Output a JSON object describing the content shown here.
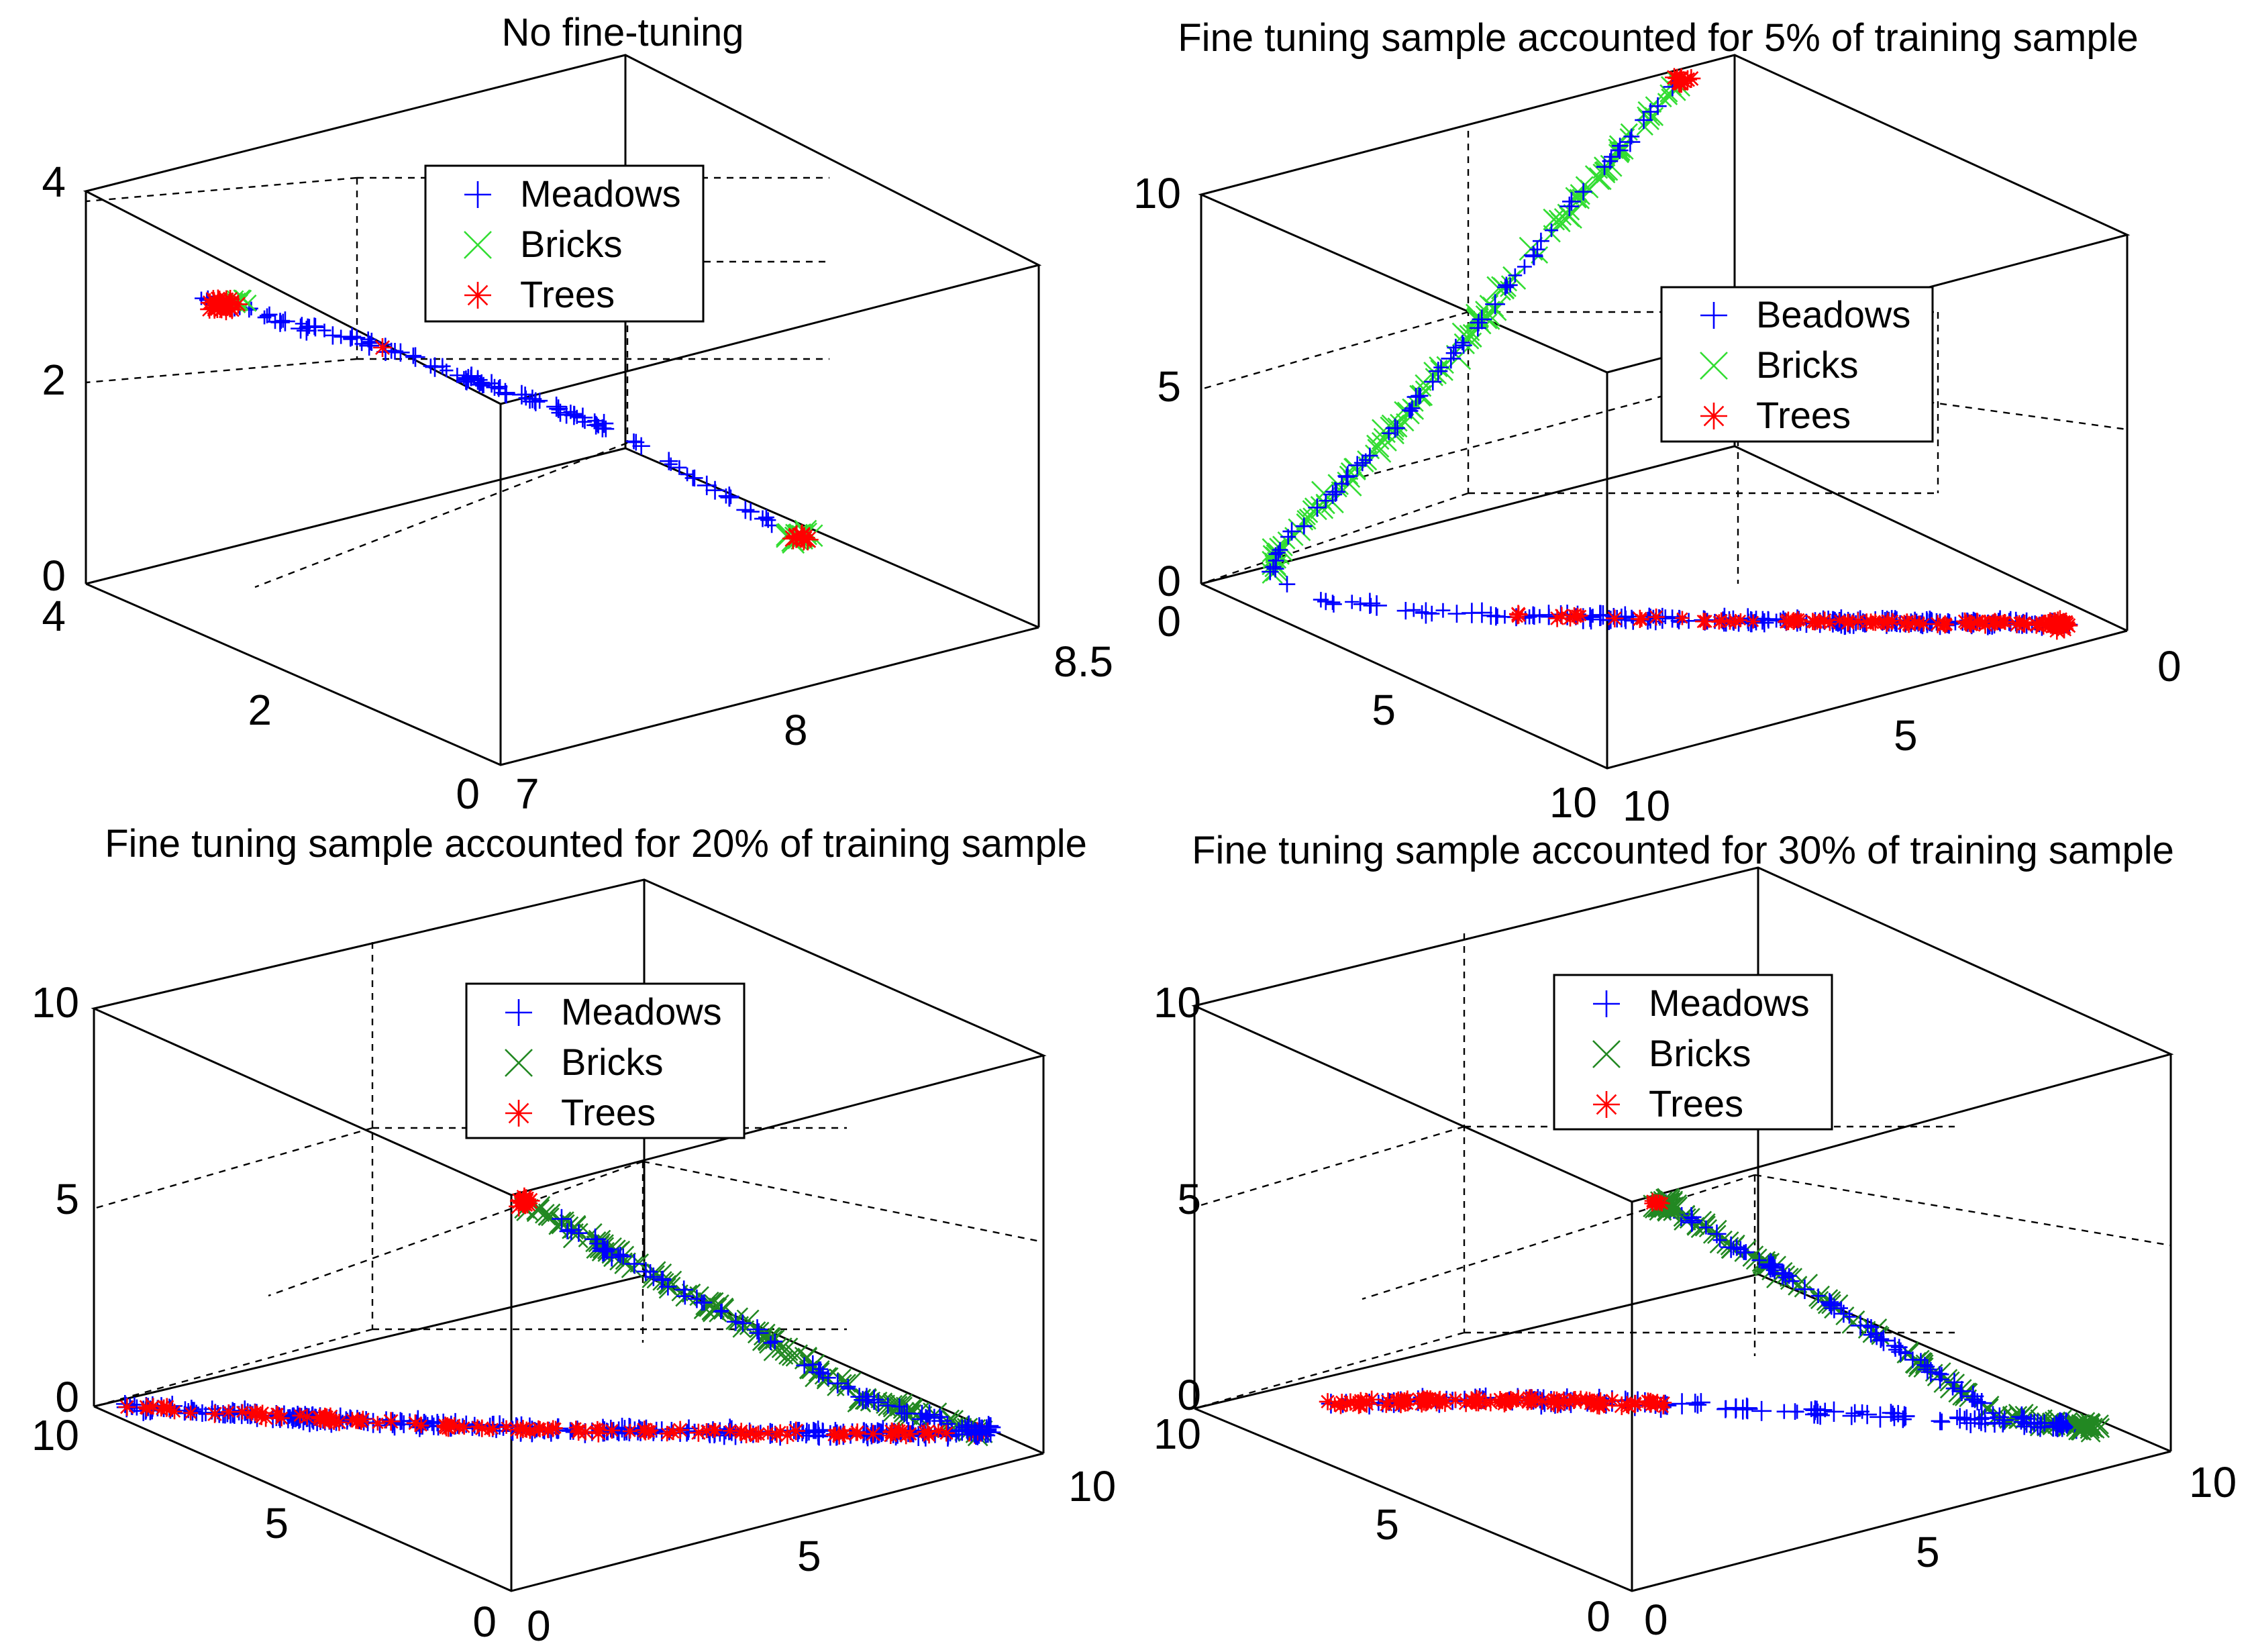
{
  "chart_data": [
    {
      "type": "scatter3d",
      "title": "No fine-tuning",
      "axes": {
        "x": {
          "ticks": [
            "7",
            "8",
            "8.5"
          ]
        },
        "y": {
          "ticks": [
            "0",
            "2",
            "4"
          ]
        },
        "z": {
          "ticks": [
            "0",
            "2",
            "4"
          ]
        }
      },
      "grid": true,
      "legend": {
        "position": "top-center",
        "entries": [
          "Meadows",
          "Bricks",
          "Trees"
        ]
      },
      "series": [
        {
          "name": "Meadows",
          "marker": "+",
          "color": "#0000ff"
        },
        {
          "name": "Bricks",
          "marker": "x",
          "color": "#33dd33"
        },
        {
          "name": "Trees",
          "marker": "*",
          "color": "#ff0000"
        }
      ],
      "description_points": "single diagonal cluster line from upper-left to lower-right"
    },
    {
      "type": "scatter3d",
      "title": "Fine tuning sample accounted for 5% of training sample",
      "axes": {
        "x": {
          "ticks": [
            "10",
            "5",
            "0"
          ]
        },
        "y": {
          "ticks": [
            "10",
            "5",
            "0"
          ]
        },
        "z": {
          "ticks": [
            "0",
            "5",
            "10"
          ]
        }
      },
      "grid": true,
      "legend": {
        "position": "right",
        "entries": [
          "Beadows",
          "Bricks",
          "Trees"
        ]
      },
      "series": [
        {
          "name": "Beadows",
          "marker": "+",
          "color": "#0000ff"
        },
        {
          "name": "Bricks",
          "marker": "x",
          "color": "#33dd33"
        },
        {
          "name": "Trees",
          "marker": "*",
          "color": "#ff0000"
        }
      ]
    },
    {
      "type": "scatter3d",
      "title": "Fine tuning sample accounted for 20% of training sample",
      "axes": {
        "x": {
          "ticks": [
            "0",
            "5",
            "10"
          ]
        },
        "y": {
          "ticks": [
            "0",
            "5",
            "10"
          ]
        },
        "z": {
          "ticks": [
            "0",
            "5",
            "10"
          ]
        }
      },
      "grid": true,
      "legend": {
        "position": "top-center",
        "entries": [
          "Meadows",
          "Bricks",
          "Trees"
        ]
      },
      "series": [
        {
          "name": "Meadows",
          "marker": "+",
          "color": "#0000ff"
        },
        {
          "name": "Bricks",
          "marker": "x",
          "color": "#228822"
        },
        {
          "name": "Trees",
          "marker": "*",
          "color": "#ff0000"
        }
      ]
    },
    {
      "type": "scatter3d",
      "title": "Fine tuning sample accounted for 30% of training sample",
      "axes": {
        "x": {
          "ticks": [
            "0",
            "5",
            "10"
          ]
        },
        "y": {
          "ticks": [
            "0",
            "5",
            "10"
          ]
        },
        "z": {
          "ticks": [
            "0",
            "5",
            "10"
          ]
        }
      },
      "grid": true,
      "legend": {
        "position": "top-center",
        "entries": [
          "Meadows",
          "Bricks",
          "Trees"
        ]
      },
      "series": [
        {
          "name": "Meadows",
          "marker": "+",
          "color": "#0000ff"
        },
        {
          "name": "Bricks",
          "marker": "x",
          "color": "#228822"
        },
        {
          "name": "Trees",
          "marker": "*",
          "color": "#ff0000"
        }
      ]
    }
  ]
}
